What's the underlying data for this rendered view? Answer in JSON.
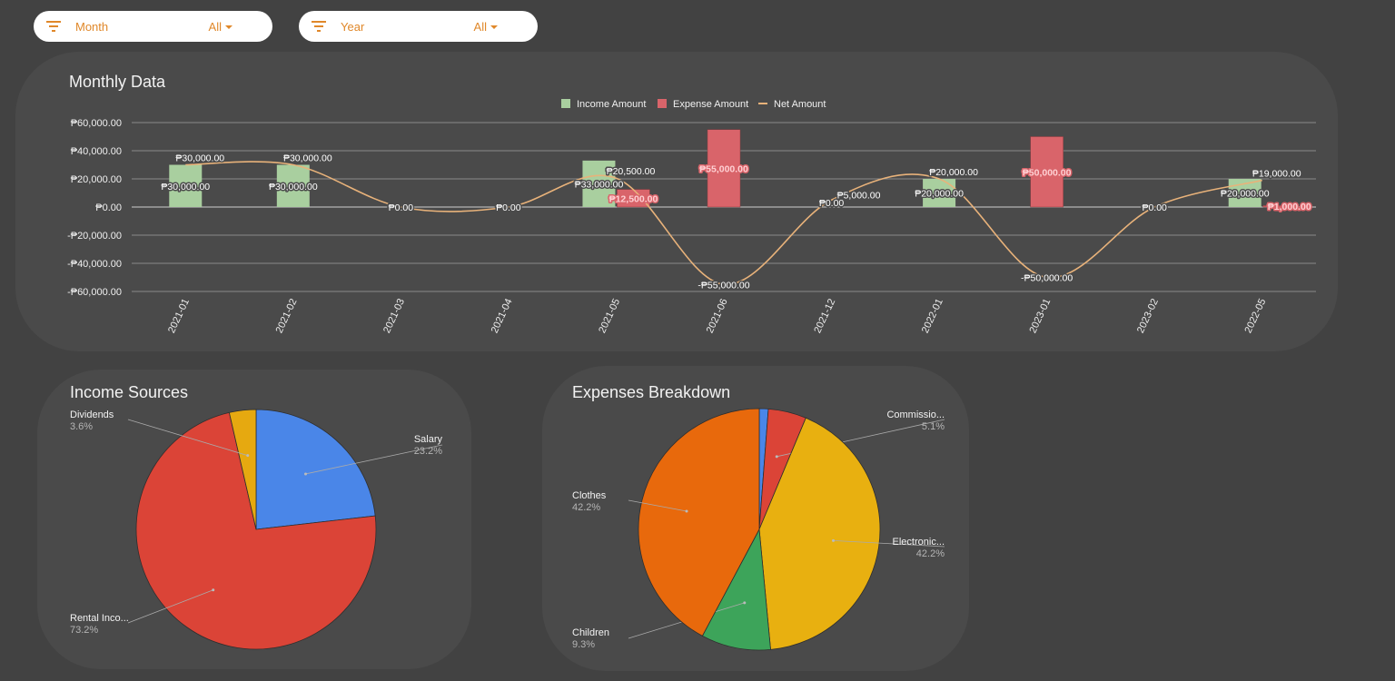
{
  "filters": [
    {
      "label": "Month",
      "value": "All"
    },
    {
      "label": "Year",
      "value": "All"
    }
  ],
  "colors": {
    "income": "#a9cf9f",
    "expense": "#d9646a",
    "net": "#e8b27a",
    "accent": "#e0882a"
  },
  "charts": {
    "monthly": {
      "title": "Monthly Data"
    },
    "income": {
      "title": "Income Sources"
    },
    "expenses": {
      "title": "Expenses Breakdown"
    }
  },
  "chart_data": [
    {
      "type": "bar",
      "title": "Monthly Data",
      "categories": [
        "2021-01",
        "2021-02",
        "2021-03",
        "2021-04",
        "2021-05",
        "2021-06",
        "2021-12",
        "2022-01",
        "2023-01",
        "2023-02",
        "2022-05"
      ],
      "series": [
        {
          "name": "Income Amount",
          "type": "bar",
          "values": [
            30000,
            30000,
            0,
            0,
            33000,
            0,
            0,
            20000,
            0,
            0,
            20000
          ],
          "labels": [
            "₱30,000.00",
            "₱30,000.00",
            "",
            "",
            "₱33,000.00",
            "",
            "₱0.00",
            "₱20,000.00",
            "",
            "",
            "₱20,000.00"
          ]
        },
        {
          "name": "Expense Amount",
          "type": "bar",
          "values": [
            0,
            0,
            0,
            0,
            12500,
            55000,
            0,
            0,
            50000,
            0,
            1000
          ],
          "labels": [
            "",
            "",
            "",
            "",
            "₱12,500.00",
            "₱55,000.00",
            "",
            "",
            "₱50,000.00",
            "",
            "₱1,000.00"
          ]
        },
        {
          "name": "Net Amount",
          "type": "line",
          "values": [
            30000,
            30000,
            0,
            0,
            20500,
            -55000,
            5000,
            20000,
            -50000,
            0,
            19000
          ],
          "labels": [
            "₱30,000.00",
            "₱30,000.00",
            "₱0.00",
            "₱0.00",
            "₱20,500.00",
            "-₱55,000.00",
            "₱5,000.00",
            "₱20,000.00",
            "-₱50,000.00",
            "₱0.00",
            "₱19,000.00"
          ]
        }
      ],
      "ylim": [
        -60000,
        60000
      ],
      "yticks": [
        "₱60,000.00",
        "₱40,000.00",
        "₱20,000.00",
        "₱0.00",
        "-₱20,000.00",
        "-₱40,000.00",
        "-₱60,000.00"
      ],
      "ytick_values": [
        60000,
        40000,
        20000,
        0,
        -20000,
        -40000,
        -60000
      ],
      "legend": "top",
      "grid": true
    },
    {
      "type": "pie",
      "title": "Income Sources",
      "slices": [
        {
          "label": "Salary",
          "pct": "23.2%",
          "value": 23.2,
          "color": "#4a86e8"
        },
        {
          "label": "Rental Inco...",
          "pct": "73.2%",
          "value": 73.2,
          "color": "#db4437"
        },
        {
          "label": "Dividends",
          "pct": "3.6%",
          "value": 3.6,
          "color": "#e6a910"
        }
      ]
    },
    {
      "type": "pie",
      "title": "Expenses Breakdown",
      "slices": [
        {
          "label": "",
          "pct": "",
          "value": 1.2,
          "color": "#4a86e8"
        },
        {
          "label": "Commissio...",
          "pct": "5.1%",
          "value": 5.1,
          "color": "#db4437"
        },
        {
          "label": "Electronic...",
          "pct": "42.2%",
          "value": 42.2,
          "color": "#e8b010"
        },
        {
          "label": "Children",
          "pct": "9.3%",
          "value": 9.3,
          "color": "#3da45a"
        },
        {
          "label": "Clothes",
          "pct": "42.2%",
          "value": 42.2,
          "color": "#e8690c"
        }
      ]
    }
  ]
}
